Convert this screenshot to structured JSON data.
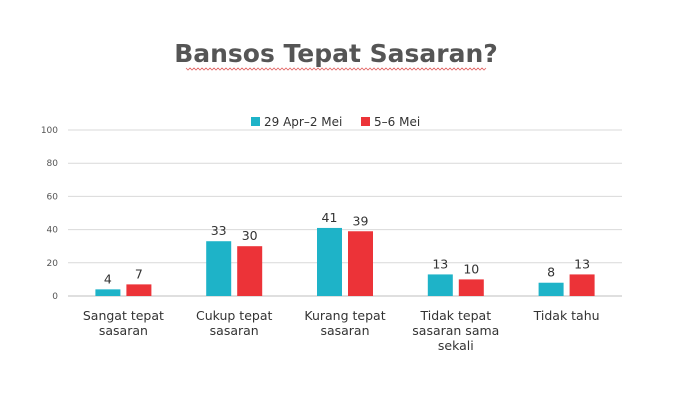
{
  "chart_data": {
    "type": "bar",
    "title": "Bansos Tepat Sasaran?",
    "categories": [
      [
        "Sangat tepat",
        "sasaran"
      ],
      [
        "Cukup tepat",
        "sasaran"
      ],
      [
        "Kurang tepat",
        "sasaran"
      ],
      [
        "Tidak tepat",
        "sasaran sama",
        "sekali"
      ],
      [
        "Tidak tahu"
      ]
    ],
    "series": [
      {
        "name": "29 Apr–2 Mei",
        "color": "#1eb3c8",
        "values": [
          4,
          33,
          41,
          13,
          8
        ]
      },
      {
        "name": "5–6 Mei",
        "color": "#ec3338",
        "values": [
          7,
          30,
          39,
          10,
          13
        ]
      }
    ],
    "ylim": [
      0,
      100
    ],
    "yticks": [
      0,
      20,
      40,
      60,
      80,
      100
    ],
    "grid": true,
    "legend": "top-center",
    "xlabel": "",
    "ylabel": ""
  }
}
